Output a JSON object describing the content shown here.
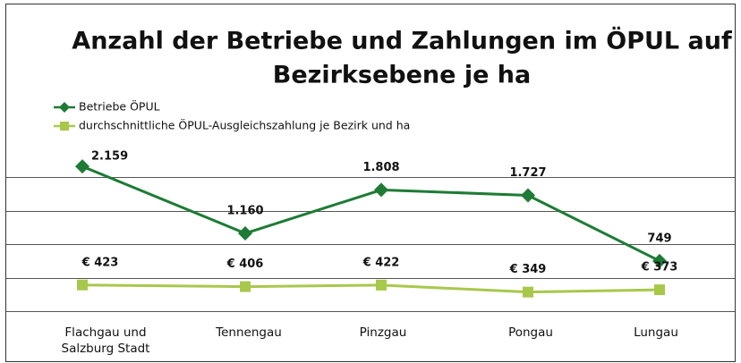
{
  "chart_data": {
    "type": "line",
    "title": "Anzahl der Betriebe und Zahlungen im ÖPUL auf Bezirksebene je ha",
    "categories": [
      "Flachgau und Salzburg Stadt",
      "Tennengau",
      "Pinzgau",
      "Pongau",
      "Lungau"
    ],
    "series": [
      {
        "name": "Betriebe ÖPUL",
        "color": "#1e7b35",
        "values": [
          2159,
          1160,
          1808,
          1727,
          749
        ],
        "value_labels": [
          "2.159",
          "1.160",
          "1.808",
          "1.727",
          "749"
        ]
      },
      {
        "name": "durchschnittliche ÖPUL-Ausgleichszahlung je Bezirk und ha",
        "color": "#a8c84c",
        "axis": "y2",
        "values": [
          423,
          406,
          422,
          349,
          373
        ],
        "value_labels": [
          "€ 423",
          "€ 406",
          "€ 422",
          "€ 349",
          "€ 373"
        ]
      }
    ],
    "ylim": [
      0,
      2500
    ],
    "yticks": [
      0,
      500,
      1000,
      1500,
      2000,
      2500
    ],
    "y2lim": [
      150,
      1900
    ],
    "grid": true
  }
}
